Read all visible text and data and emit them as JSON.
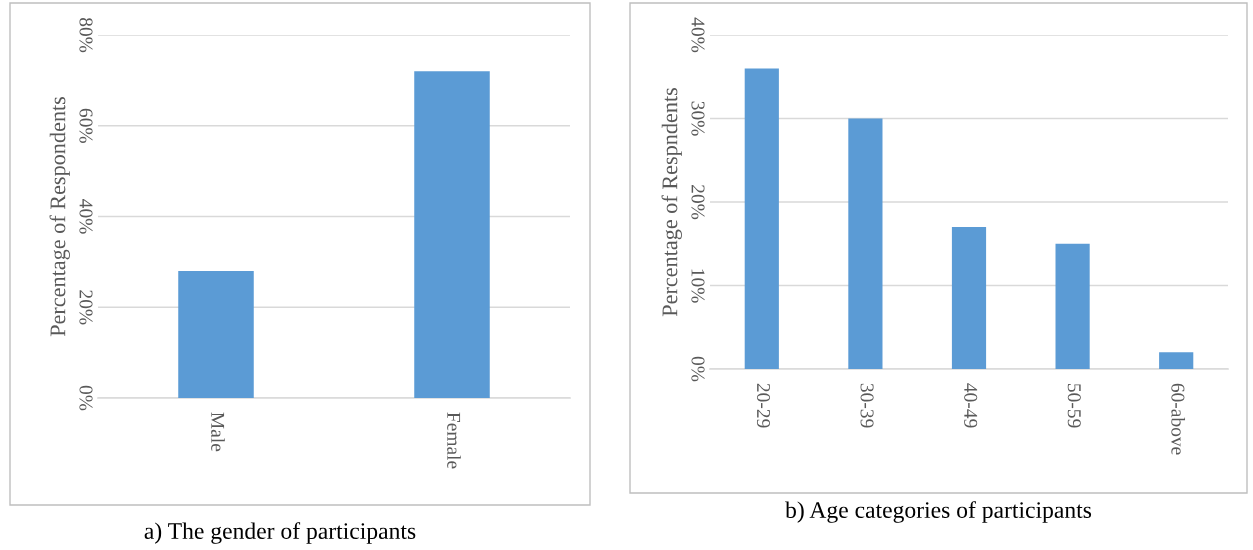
{
  "chart_data": [
    {
      "type": "bar",
      "title": "a) The gender of participants",
      "ylabel": "Percentage of Respondents",
      "categories": [
        "Male",
        "Female"
      ],
      "values": [
        28,
        72
      ],
      "color": "#5b9bd5",
      "ylim": [
        0,
        80
      ],
      "yticks": [
        {
          "value": 0,
          "label": "0%"
        },
        {
          "value": 20,
          "label": "20%"
        },
        {
          "value": 40,
          "label": "40%"
        },
        {
          "value": 60,
          "label": "60%"
        },
        {
          "value": 80,
          "label": "80%"
        }
      ],
      "grid": "y"
    },
    {
      "type": "bar",
      "title": "b) Age categories of participants",
      "ylabel": "Percentage of Respndents",
      "categories": [
        "20-29",
        "30-39",
        "40-49",
        "50-59",
        "60-above"
      ],
      "values": [
        36,
        30,
        17,
        15,
        2
      ],
      "color": "#5b9bd5",
      "ylim": [
        0,
        40
      ],
      "yticks": [
        {
          "value": 0,
          "label": "0%"
        },
        {
          "value": 10,
          "label": "10%"
        },
        {
          "value": 20,
          "label": "20%"
        },
        {
          "value": 30,
          "label": "30%"
        },
        {
          "value": 40,
          "label": "40%"
        }
      ],
      "grid": "y"
    }
  ]
}
